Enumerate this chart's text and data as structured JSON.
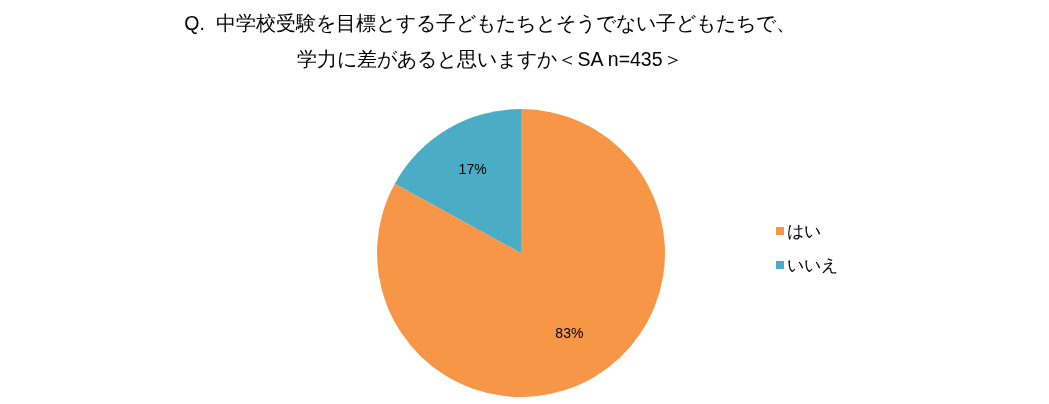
{
  "chart_data": {
    "type": "pie",
    "title": "Q.  中学校受験を目標とする子どもたちとそうでない子どもたちで、学力に差があると思いますか＜SA n=435＞",
    "categories": [
      "はい",
      "いいえ"
    ],
    "values": [
      83,
      17
    ],
    "colors": [
      "#f79646",
      "#4bacc6"
    ],
    "value_labels": [
      "83%",
      "17%"
    ],
    "legend": "right"
  }
}
